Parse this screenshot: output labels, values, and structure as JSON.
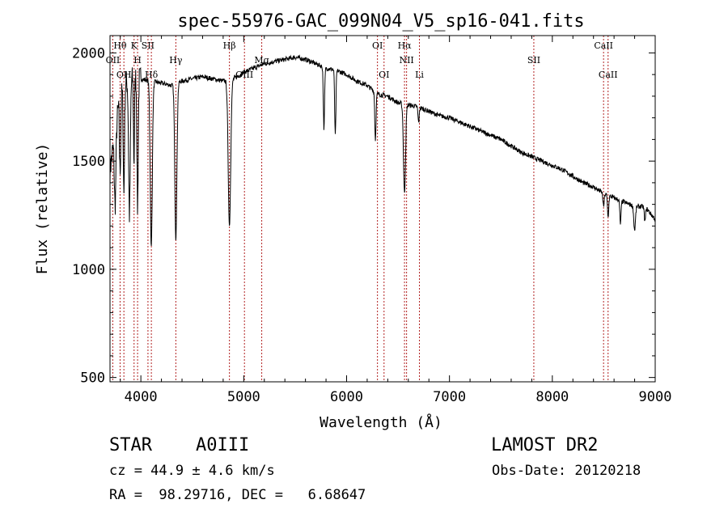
{
  "chart_data": {
    "type": "line",
    "title": "spec-55976-GAC_099N04_V5_sp16-041.fits",
    "xlabel": "Wavelength (Å)",
    "ylabel": "Flux (relative)",
    "xlim": [
      3700,
      9000
    ],
    "ylim": [
      480,
      2080
    ],
    "xticks": [
      4000,
      5000,
      6000,
      7000,
      8000,
      9000
    ],
    "yticks": [
      500,
      1000,
      1500,
      2000
    ],
    "grid": false,
    "line_color": "#000000",
    "marker_color": "#b22222",
    "continuum": [
      [
        3700,
        1450
      ],
      [
        3750,
        1650
      ],
      [
        3800,
        1800
      ],
      [
        3850,
        1860
      ],
      [
        3900,
        1880
      ],
      [
        3950,
        1890
      ],
      [
        4000,
        1880
      ],
      [
        4100,
        1870
      ],
      [
        4200,
        1860
      ],
      [
        4300,
        1850
      ],
      [
        4400,
        1870
      ],
      [
        4500,
        1880
      ],
      [
        4600,
        1890
      ],
      [
        4700,
        1880
      ],
      [
        4800,
        1870
      ],
      [
        4900,
        1880
      ],
      [
        5000,
        1910
      ],
      [
        5100,
        1930
      ],
      [
        5200,
        1950
      ],
      [
        5300,
        1960
      ],
      [
        5400,
        1970
      ],
      [
        5500,
        1980
      ],
      [
        5600,
        1970
      ],
      [
        5700,
        1950
      ],
      [
        5800,
        1930
      ],
      [
        5900,
        1920
      ],
      [
        6000,
        1900
      ],
      [
        6100,
        1870
      ],
      [
        6200,
        1850
      ],
      [
        6300,
        1810
      ],
      [
        6400,
        1800
      ],
      [
        6500,
        1770
      ],
      [
        6600,
        1760
      ],
      [
        6700,
        1750
      ],
      [
        6800,
        1730
      ],
      [
        6900,
        1710
      ],
      [
        7000,
        1700
      ],
      [
        7100,
        1680
      ],
      [
        7200,
        1660
      ],
      [
        7300,
        1640
      ],
      [
        7400,
        1620
      ],
      [
        7500,
        1600
      ],
      [
        7600,
        1570
      ],
      [
        7700,
        1540
      ],
      [
        7800,
        1520
      ],
      [
        7900,
        1500
      ],
      [
        8000,
        1480
      ],
      [
        8100,
        1460
      ],
      [
        8200,
        1430
      ],
      [
        8300,
        1400
      ],
      [
        8400,
        1380
      ],
      [
        8500,
        1350
      ],
      [
        8600,
        1330
      ],
      [
        8700,
        1310
      ],
      [
        8800,
        1290
      ],
      [
        8900,
        1290
      ],
      [
        9000,
        1230
      ]
    ],
    "absorption_features": [
      [
        3750,
        1300,
        8
      ],
      [
        3798,
        1450,
        6
      ],
      [
        3835,
        1350,
        6
      ],
      [
        3889,
        1250,
        8
      ],
      [
        3933,
        1500,
        5
      ],
      [
        3968,
        1280,
        6
      ],
      [
        4101,
        1100,
        10
      ],
      [
        4340,
        1140,
        10
      ],
      [
        4861,
        1200,
        12
      ],
      [
        5780,
        1650,
        6
      ],
      [
        5890,
        1620,
        6
      ],
      [
        6280,
        1600,
        6
      ],
      [
        6563,
        1350,
        10
      ],
      [
        6700,
        1680,
        6
      ],
      [
        8498,
        1290,
        6
      ],
      [
        8542,
        1240,
        6
      ],
      [
        8662,
        1210,
        6
      ],
      [
        8800,
        1180,
        8
      ],
      [
        8900,
        1220,
        6
      ]
    ],
    "lines": [
      {
        "label": "OII",
        "wavelength": 3727,
        "row": 1
      },
      {
        "label": "Hθ",
        "wavelength": 3798,
        "row": 0
      },
      {
        "label": "OH",
        "wavelength": 3835,
        "row": 2
      },
      {
        "label": "K",
        "wavelength": 3934,
        "row": 0
      },
      {
        "label": "H",
        "wavelength": 3968,
        "row": 1
      },
      {
        "label": "SII",
        "wavelength": 4069,
        "row": 0
      },
      {
        "label": "Hδ",
        "wavelength": 4102,
        "row": 2
      },
      {
        "label": "Hγ",
        "wavelength": 4340,
        "row": 1
      },
      {
        "label": "Hβ",
        "wavelength": 4861,
        "row": 0
      },
      {
        "label": "OIII",
        "wavelength": 5007,
        "row": 2
      },
      {
        "label": "Mg",
        "wavelength": 5175,
        "row": 1
      },
      {
        "label": "OI",
        "wavelength": 6300,
        "row": 0
      },
      {
        "label": "OI",
        "wavelength": 6364,
        "row": 2
      },
      {
        "label": "Hα",
        "wavelength": 6563,
        "row": 0
      },
      {
        "label": "NII",
        "wavelength": 6583,
        "row": 1
      },
      {
        "label": "Li",
        "wavelength": 6708,
        "row": 2
      },
      {
        "label": "SII",
        "wavelength": 7820,
        "row": 1
      },
      {
        "label": "CaII",
        "wavelength": 8498,
        "row": 0
      },
      {
        "label": "CaII",
        "wavelength": 8542,
        "row": 2
      }
    ]
  },
  "info": {
    "class_label": "STAR",
    "subclass": "A0III",
    "survey": "LAMOST DR2",
    "cz": "cz = 44.9 ± 4.6 km/s",
    "obs_date": "Obs-Date: 20120218",
    "radec": "RA =  98.29716, DEC =   6.68647"
  }
}
